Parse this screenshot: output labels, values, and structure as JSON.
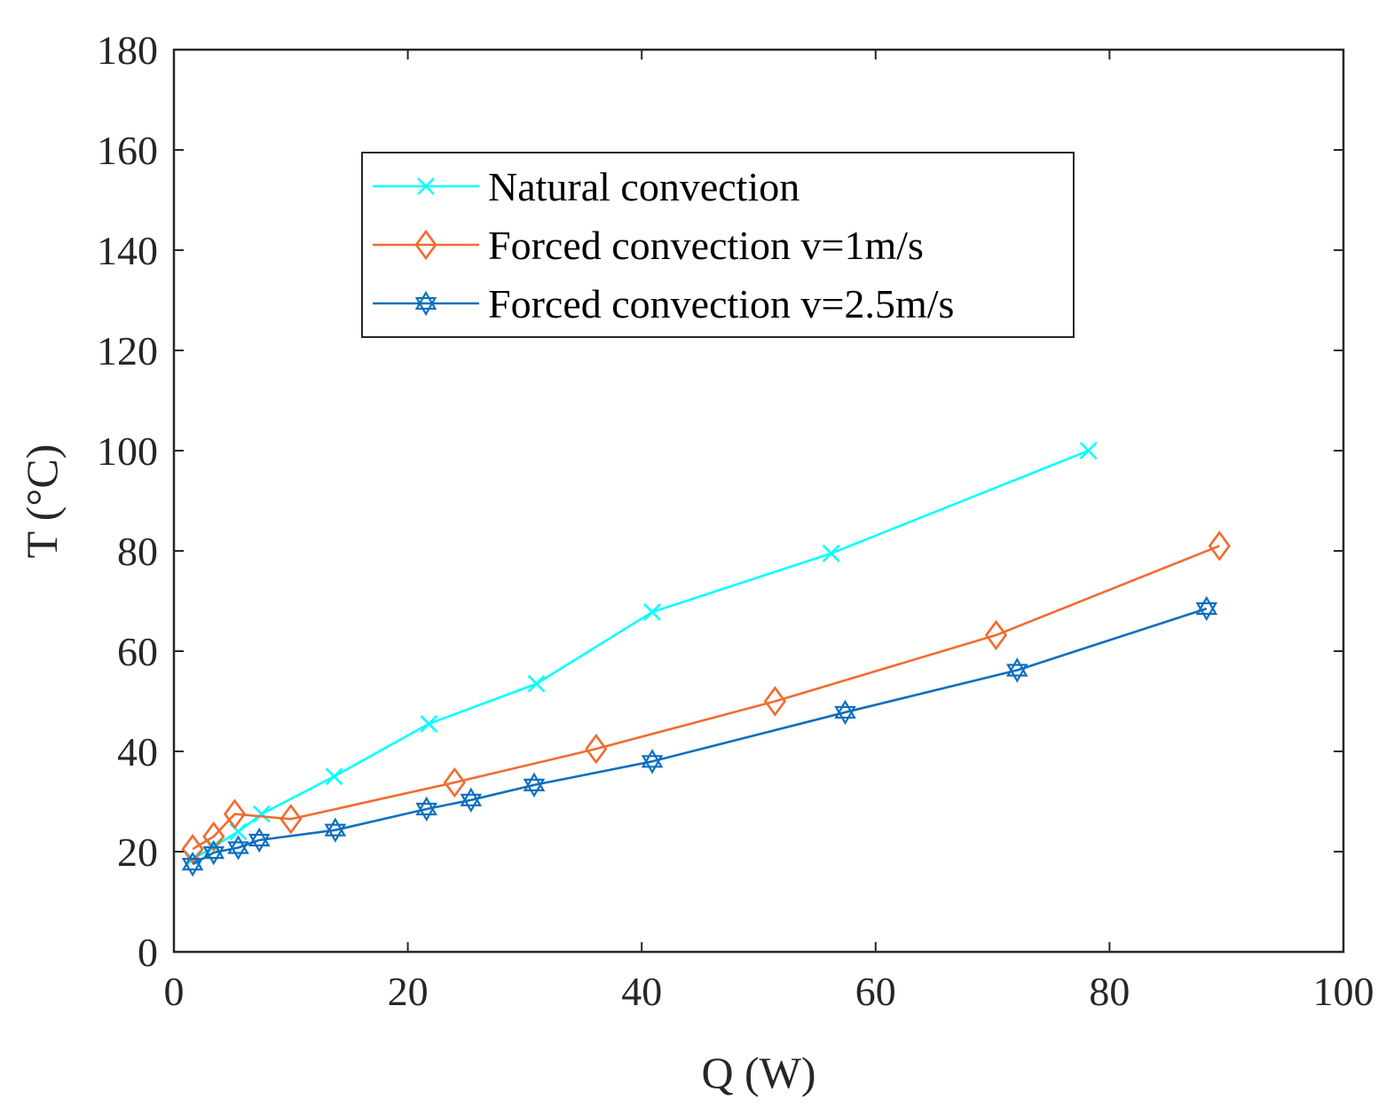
{
  "chart_data": {
    "type": "line",
    "title": "",
    "xlabel": "Q (W)",
    "ylabel": "T (°C)",
    "xlim": [
      0,
      100
    ],
    "ylim": [
      0,
      180
    ],
    "xticks": [
      0,
      20,
      40,
      60,
      80,
      100
    ],
    "yticks": [
      0,
      20,
      40,
      60,
      80,
      100,
      120,
      140,
      160,
      180
    ],
    "xtick_labels": [
      "0",
      "20",
      "40",
      "60",
      "80",
      "100"
    ],
    "ytick_labels": [
      "0",
      "20",
      "40",
      "60",
      "80",
      "100",
      "120",
      "140",
      "160",
      "180"
    ],
    "grid": false,
    "legend_position": "top-center",
    "series": [
      {
        "name": "Natural convection",
        "color": "#00FFFF",
        "marker": "x",
        "points": [
          [
            1.6,
            18.5
          ],
          [
            3.4,
            21.0
          ],
          [
            5.5,
            24.0
          ],
          [
            7.5,
            27.5
          ],
          [
            13.7,
            35.0
          ],
          [
            21.8,
            45.5
          ],
          [
            31.0,
            53.5
          ],
          [
            40.9,
            67.8
          ],
          [
            56.2,
            79.5
          ],
          [
            78.2,
            100.0
          ]
        ]
      },
      {
        "name": "Forced convection v=1m/s",
        "color": "#F26B2F",
        "marker": "diamond",
        "points": [
          [
            1.6,
            20.5
          ],
          [
            3.4,
            23.0
          ],
          [
            5.2,
            27.5
          ],
          [
            10.0,
            26.5
          ],
          [
            24.0,
            33.8
          ],
          [
            36.1,
            40.5
          ],
          [
            51.4,
            50.0
          ],
          [
            70.3,
            63.2
          ],
          [
            89.4,
            81.0
          ]
        ]
      },
      {
        "name": "Forced convection v=2.5m/s",
        "color": "#0E6FBE",
        "marker": "hexagram",
        "points": [
          [
            1.6,
            17.5
          ],
          [
            3.4,
            19.8
          ],
          [
            5.5,
            20.8
          ],
          [
            7.3,
            22.3
          ],
          [
            13.8,
            24.3
          ],
          [
            21.6,
            28.5
          ],
          [
            25.4,
            30.3
          ],
          [
            30.8,
            33.3
          ],
          [
            40.9,
            38.0
          ],
          [
            57.4,
            47.8
          ],
          [
            72.1,
            56.2
          ],
          [
            88.3,
            68.5
          ]
        ]
      }
    ]
  }
}
